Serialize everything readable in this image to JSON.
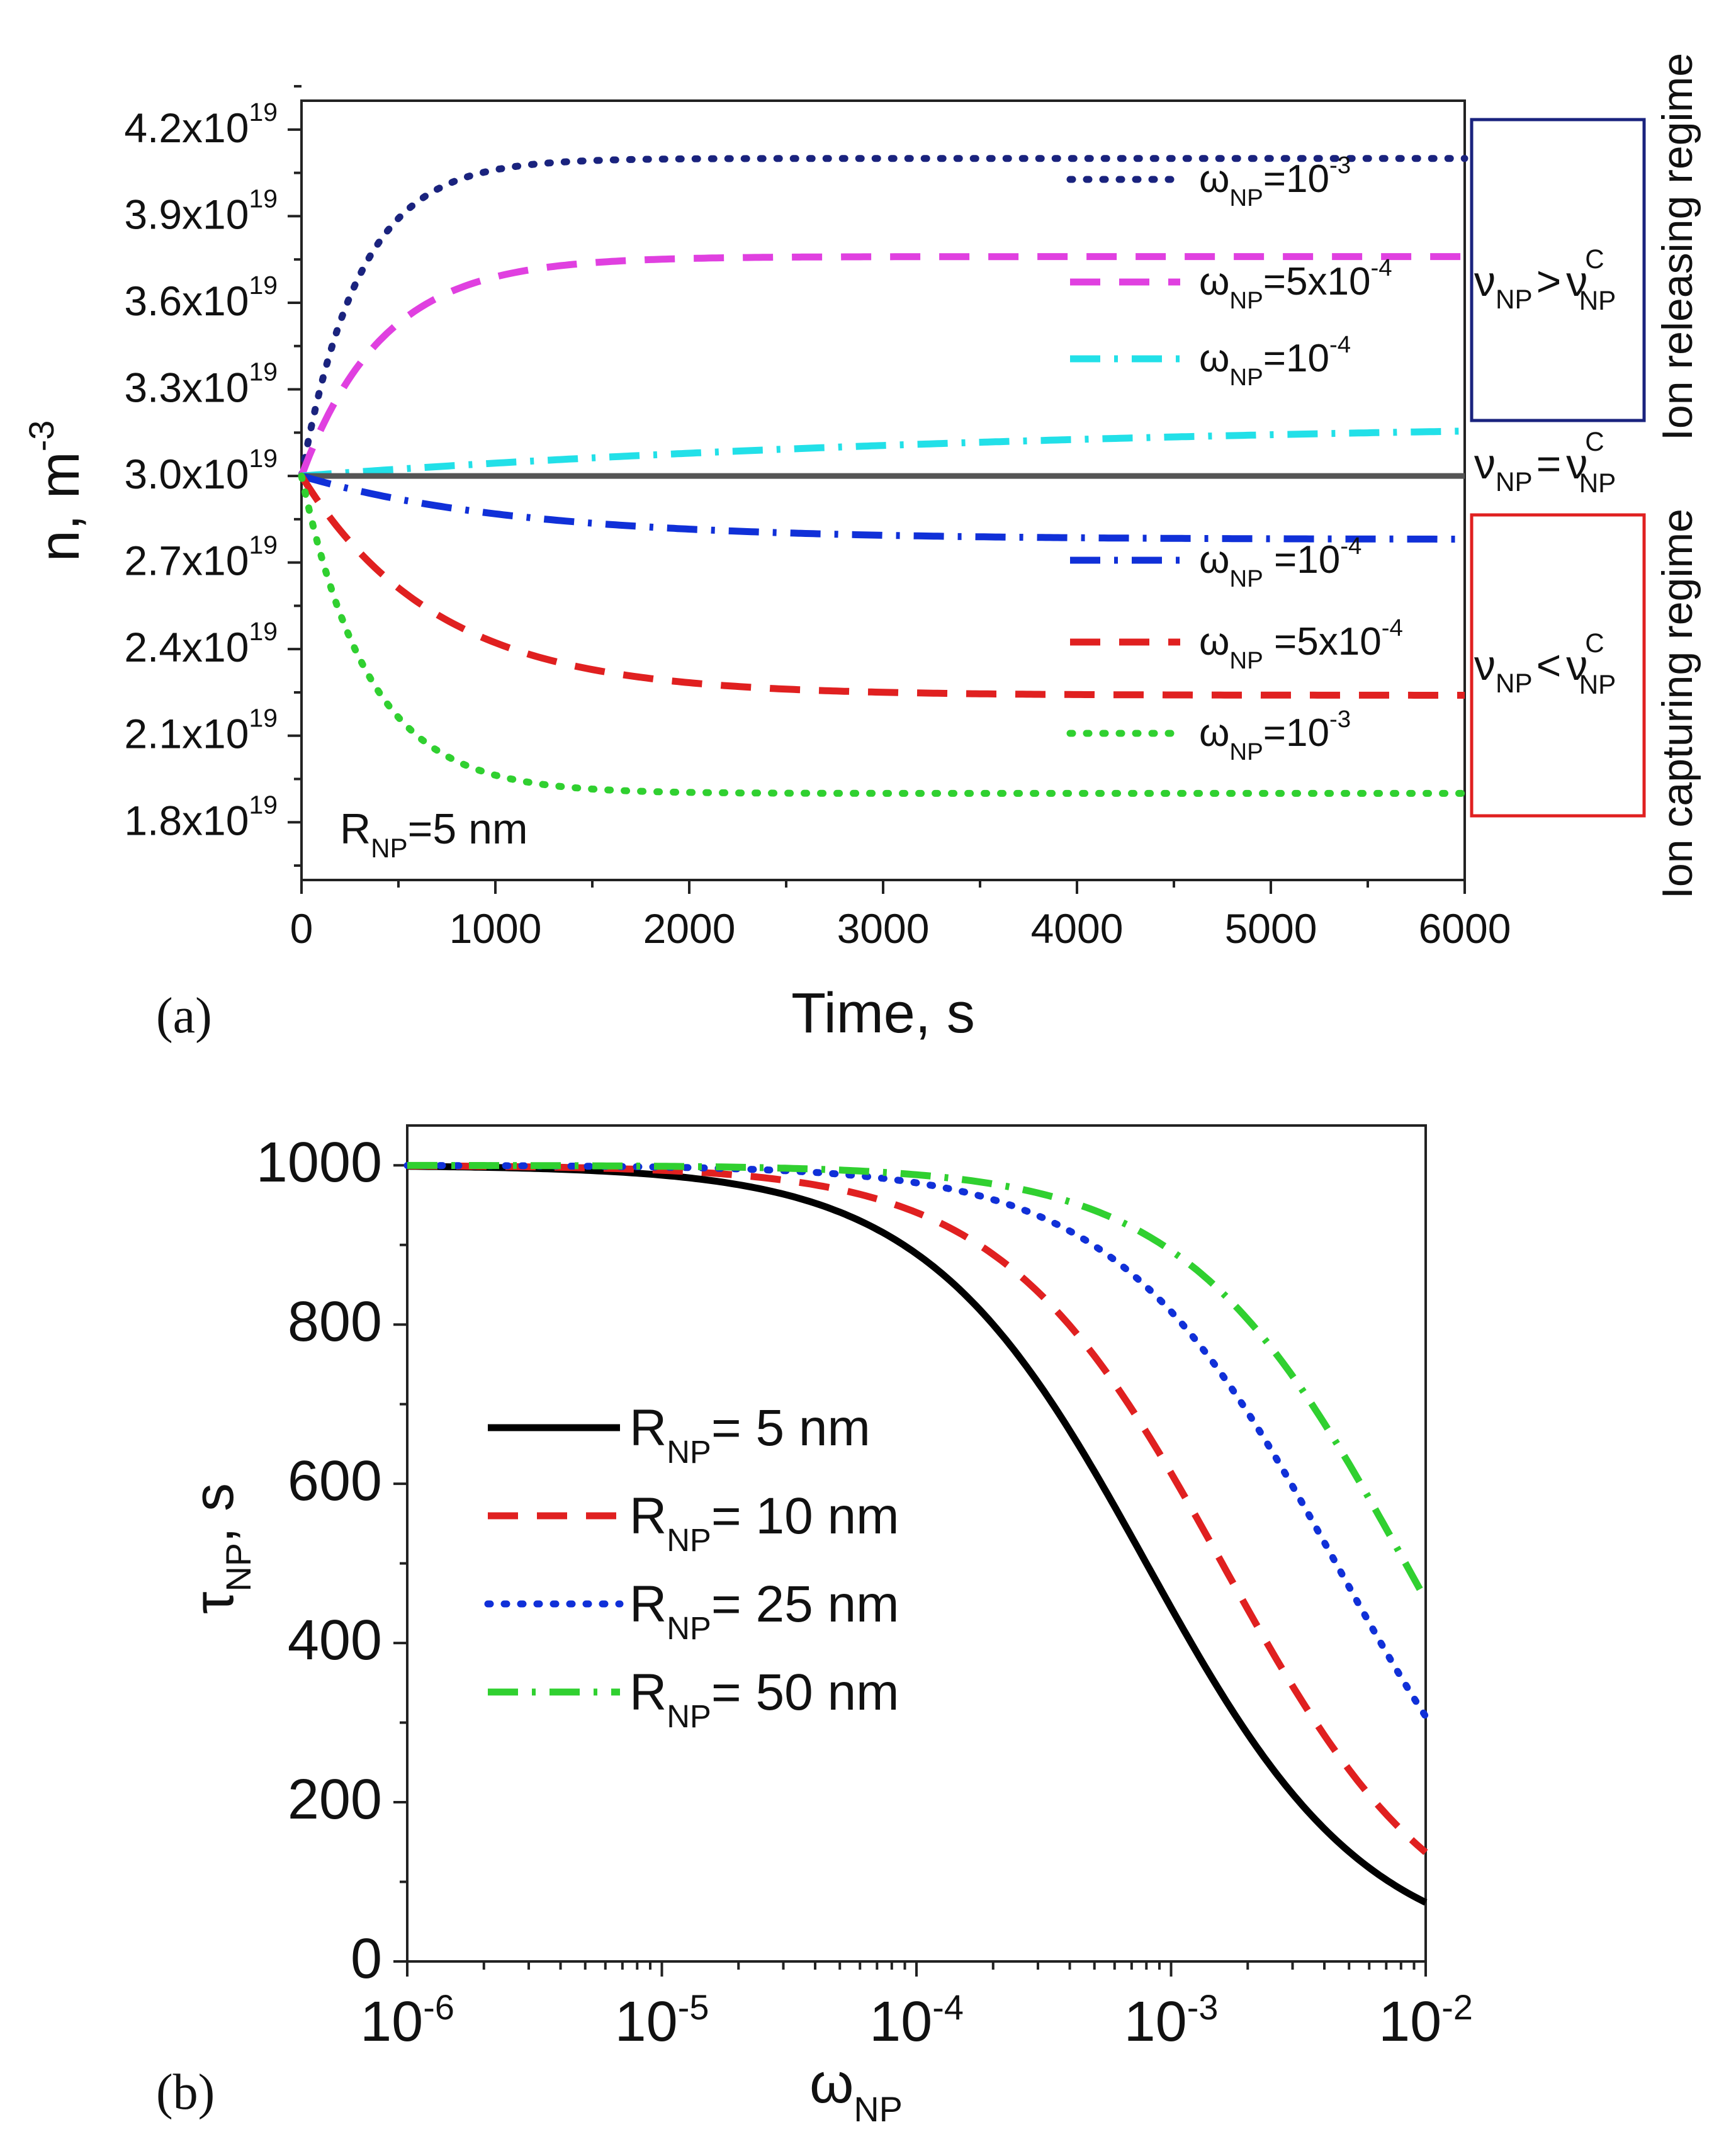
{
  "chart_data": [
    {
      "panel": "(a)",
      "type": "line",
      "xlabel": "Time, s",
      "ylabel": "n, m",
      "ylabel_exp": "-3",
      "xlim": [
        0,
        6000
      ],
      "ylim": [
        1.6e+19,
        4.3e+19
      ],
      "x_ticks": [
        "0",
        "1000",
        "2000",
        "3000",
        "4000",
        "5000",
        "6000"
      ],
      "y_ticks": [
        {
          "mant": "1.8x10",
          "exp": "19",
          "value": 1.8e+19
        },
        {
          "mant": "2.1x10",
          "exp": "19",
          "value": 2.1e+19
        },
        {
          "mant": "2.4x10",
          "exp": "19",
          "value": 2.4e+19
        },
        {
          "mant": "2.7x10",
          "exp": "19",
          "value": 2.7e+19
        },
        {
          "mant": "3.0x10",
          "exp": "19",
          "value": 3e+19
        },
        {
          "mant": "3.3x10",
          "exp": "19",
          "value": 3.3e+19
        },
        {
          "mant": "3.6x10",
          "exp": "19",
          "value": 3.6e+19
        },
        {
          "mant": "3.9x10",
          "exp": "19",
          "value": 3.9e+19
        },
        {
          "mant": "4.2x10",
          "exp": "19",
          "value": 4.2e+19
        }
      ],
      "series": [
        {
          "name": "releasing ω=1e-3",
          "label_main": "ω",
          "label_sub": "NP",
          "label_value": "=10",
          "label_exp": "-3",
          "color": "#1a237e",
          "dash": "dot",
          "n0": 3e+19,
          "ninf": 4.1e+19,
          "tau": 300
        },
        {
          "name": "releasing ω=5e-4",
          "label_main": "ω",
          "label_sub": "NP",
          "label_value": "=5x10",
          "label_exp": "-4",
          "color": "#e040e0",
          "dash": "dash",
          "n0": 3e+19,
          "ninf": 3.76e+19,
          "tau": 420
        },
        {
          "name": "releasing ω=1e-4",
          "label_main": "ω",
          "label_sub": "NP",
          "label_value": "=10",
          "label_exp": "-4",
          "color": "#22e0e8",
          "dash": "dashdot",
          "n0": 3e+19,
          "ninf": 3.2e+19,
          "tau": 4000
        },
        {
          "name": "equilibrium",
          "color": "#555555",
          "dash": "solid",
          "n0": 3e+19,
          "ninf": 3e+19,
          "tau": 1000
        },
        {
          "name": "capturing ω=1e-4",
          "label_main": "ω",
          "label_sub": "NP",
          "label_value": " =10",
          "label_exp": "-4",
          "color": "#1030d8",
          "dash": "dashdot",
          "n0": 3e+19,
          "ninf": 2.78e+19,
          "tau": 1100
        },
        {
          "name": "capturing ω=5e-4",
          "label_main": "ω",
          "label_sub": "NP",
          "label_value": " =5x10",
          "label_exp": "-4",
          "color": "#e02020",
          "dash": "dash",
          "n0": 3e+19,
          "ninf": 2.24e+19,
          "tau": 700
        },
        {
          "name": "capturing ω=1e-3",
          "label_main": "ω",
          "label_sub": "NP",
          "label_value": "=10",
          "label_exp": "-3",
          "color": "#30d030",
          "dash": "dot",
          "n0": 3e+19,
          "ninf": 1.9e+19,
          "tau": 350
        }
      ],
      "annotations": {
        "radius": {
          "main": "R",
          "sub": "NP",
          "rest": "=5 nm"
        },
        "releasing_label": "Ion releasing regime",
        "capturing_label": "Ion capturing regime",
        "releasing_color": "#e040e0",
        "capturing_color": "#1030d8",
        "releasing_box_color": "#1a237e",
        "capturing_box_color": "#e02020",
        "gt": {
          "left": "ν",
          "left_sub": "NP",
          "op": ">",
          "right": "ν",
          "right_sup": "C",
          "right_sub": "NP"
        },
        "eq": {
          "left": "ν",
          "left_sub": "NP",
          "op": "=",
          "right": "ν",
          "right_sup": "C",
          "right_sub": "NP"
        },
        "lt": {
          "left": "ν",
          "left_sub": "NP",
          "op": "<",
          "right": "ν",
          "right_sup": "C",
          "right_sub": "NP"
        }
      }
    },
    {
      "panel": "(b)",
      "type": "line",
      "xscale": "log",
      "xlabel": "ω",
      "xlabel_sub": "NP",
      "ylabel": "τ",
      "ylabel_sub": "NP",
      "ylabel_unit": ", s",
      "xlim": [
        1e-06,
        0.01
      ],
      "ylim": [
        0,
        1050
      ],
      "x_ticks": [
        {
          "mant": "10",
          "exp": "-6",
          "value": 1e-06
        },
        {
          "mant": "10",
          "exp": "-5",
          "value": 1e-05
        },
        {
          "mant": "10",
          "exp": "-4",
          "value": 0.0001
        },
        {
          "mant": "10",
          "exp": "-3",
          "value": 0.001
        },
        {
          "mant": "10",
          "exp": "-2",
          "value": 0.01
        }
      ],
      "y_ticks": [
        "0",
        "200",
        "400",
        "600",
        "800",
        "1000"
      ],
      "series": [
        {
          "name": "R=5",
          "label_main": "R",
          "label_sub": "NP",
          "label_rest": "= 5 nm",
          "color": "#000000",
          "dash": "solid",
          "tau0": 1000,
          "a": 1250
        },
        {
          "name": "R=10",
          "label_main": "R",
          "label_sub": "NP",
          "label_rest": "= 10 nm",
          "color": "#e02020",
          "dash": "dash",
          "tau0": 1000,
          "a": 630
        },
        {
          "name": "R=25",
          "label_main": "R",
          "label_sub": "NP",
          "label_rest": "= 25 nm",
          "color": "#1030d8",
          "dash": "dot",
          "tau0": 1000,
          "a": 225
        },
        {
          "name": "R=50",
          "label_main": "R",
          "label_sub": "NP",
          "label_rest": "= 50 nm",
          "color": "#30d030",
          "dash": "dashdot",
          "tau0": 1000,
          "a": 120
        }
      ],
      "value_samples": {
        "x": [
          1e-06,
          1e-05,
          0.0001,
          0.001,
          0.01
        ],
        "R=5": [
          999,
          988,
          889,
          444,
          74
        ],
        "R=10": [
          999,
          994,
          941,
          614,
          137
        ],
        "R=25": [
          1000,
          998,
          978,
          816,
          308
        ],
        "R=50": [
          1000,
          999,
          988,
          893,
          455
        ]
      }
    }
  ]
}
